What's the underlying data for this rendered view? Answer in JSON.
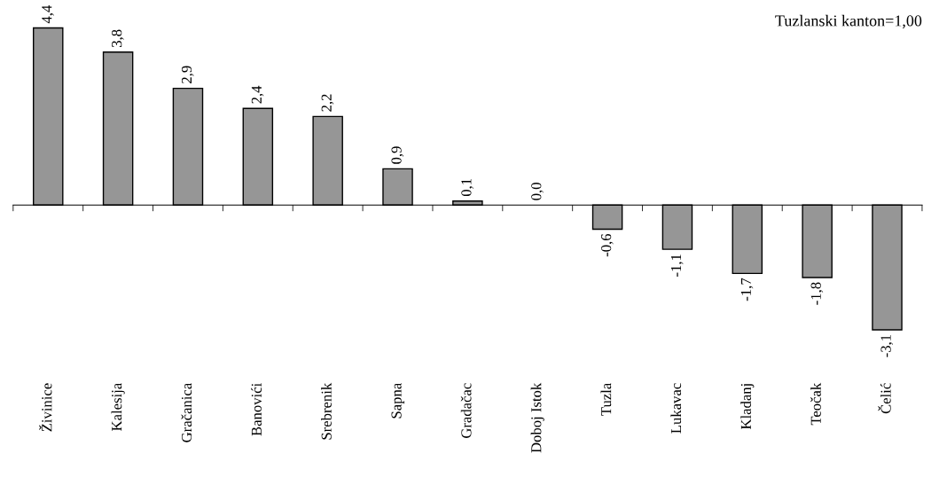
{
  "chart_data": {
    "type": "bar",
    "categories": [
      "Živinice",
      "Kalesija",
      "Gračanica",
      "Banovići",
      "Srebrenik",
      "Sapna",
      "Gradačac",
      "Doboj Istok",
      "Tuzla",
      "Lukavac",
      "Kladanj",
      "Teočak",
      "Čelić"
    ],
    "values": [
      4.4,
      3.8,
      2.9,
      2.4,
      2.2,
      0.9,
      0.1,
      0.0,
      -0.6,
      -1.1,
      -1.7,
      -1.8,
      -3.1
    ],
    "value_labels": [
      "4,4",
      "3,8",
      "2,9",
      "2,4",
      "2,2",
      "0,9",
      "0,1",
      "0,0",
      "-0,6",
      "-1,1",
      "-1,7",
      "-1,8",
      "-3,1"
    ],
    "color": "#969696",
    "annotations": [
      "Tuzlanski kanton=1,00"
    ],
    "grid": false,
    "legend": false
  }
}
